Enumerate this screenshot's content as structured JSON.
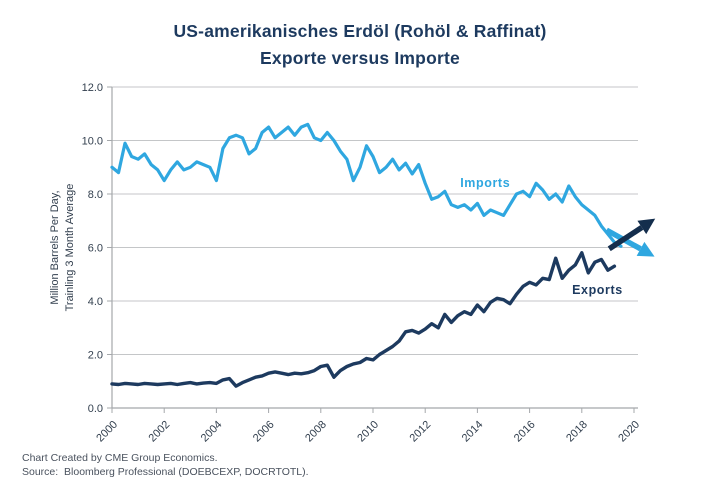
{
  "title": {
    "line1": "US-amerikanisches Erdöl (Rohöl & Raffinat)",
    "line2": "Exporte versus Importe"
  },
  "footer": {
    "line1": "Chart Created by CME Group Economics.",
    "line2": "Source:  Bloomberg Professional (DOEBCEXP, DOCRTOTL)."
  },
  "colors": {
    "navy": "#1d3a5f",
    "arrow_navy": "#142e4d",
    "blue": "#2fa7e0",
    "grid": "#c4c6c8",
    "axis": "#a5a8ab",
    "tick_text": "#323f4e",
    "footer_text": "#4a525e"
  },
  "chart_data": {
    "type": "line",
    "title": "US-amerikanisches Erdöl (Rohöl & Raffinat) — Exporte versus Importe",
    "xlabel": "",
    "ylabel_lines": [
      "Million Barrels Per Day,",
      "Trainling 3 Month Average"
    ],
    "xlim": [
      2000,
      2020
    ],
    "ylim": [
      0,
      12
    ],
    "x_ticks": [
      2000,
      2002,
      2004,
      2006,
      2008,
      2010,
      2012,
      2014,
      2016,
      2018,
      2020
    ],
    "y_ticks": [
      0,
      2,
      4,
      6,
      8,
      10,
      12
    ],
    "y_tick_labels": [
      "0.0",
      "2.0",
      "4.0",
      "6.0",
      "8.0",
      "10.0",
      "12.0"
    ],
    "grid": "horizontal",
    "legend": "inline-labels",
    "x_start": 2000,
    "x_step": 0.25,
    "series": [
      {
        "name": "Imports",
        "color": "#2fa7e0",
        "stroke_width": 3.2,
        "label": {
          "x": 2014.3,
          "y": 8.42
        },
        "values": [
          9.0,
          8.8,
          9.9,
          9.4,
          9.3,
          9.5,
          9.1,
          8.9,
          8.5,
          8.9,
          9.2,
          8.9,
          9.0,
          9.2,
          9.1,
          9.0,
          8.5,
          9.7,
          10.1,
          10.2,
          10.1,
          9.5,
          9.7,
          10.3,
          10.5,
          10.1,
          10.3,
          10.5,
          10.2,
          10.5,
          10.6,
          10.1,
          10.0,
          10.3,
          10.0,
          9.6,
          9.3,
          8.5,
          9.0,
          9.8,
          9.4,
          8.8,
          9.0,
          9.3,
          8.9,
          9.15,
          8.75,
          9.1,
          8.4,
          7.8,
          7.9,
          8.1,
          7.6,
          7.5,
          7.6,
          7.4,
          7.65,
          7.2,
          7.4,
          7.3,
          7.2,
          7.6,
          8.0,
          8.1,
          7.9,
          8.4,
          8.15,
          7.8,
          8.0,
          7.7,
          8.3,
          7.9,
          7.6,
          7.4,
          7.2,
          6.8,
          6.5,
          6.2,
          6.05
        ]
      },
      {
        "name": "Exports",
        "color": "#1d3a5f",
        "stroke_width": 3.4,
        "label": {
          "x": 2018.6,
          "y": 4.42
        },
        "values": [
          0.9,
          0.88,
          0.92,
          0.9,
          0.88,
          0.92,
          0.9,
          0.88,
          0.9,
          0.92,
          0.88,
          0.92,
          0.95,
          0.9,
          0.93,
          0.95,
          0.92,
          1.05,
          1.1,
          0.82,
          0.95,
          1.05,
          1.15,
          1.2,
          1.3,
          1.35,
          1.3,
          1.25,
          1.3,
          1.28,
          1.32,
          1.4,
          1.55,
          1.6,
          1.15,
          1.4,
          1.55,
          1.65,
          1.7,
          1.85,
          1.8,
          2.0,
          2.15,
          2.3,
          2.5,
          2.85,
          2.9,
          2.8,
          2.95,
          3.15,
          3.0,
          3.5,
          3.2,
          3.45,
          3.6,
          3.5,
          3.85,
          3.6,
          3.95,
          4.1,
          4.05,
          3.9,
          4.25,
          4.55,
          4.7,
          4.6,
          4.85,
          4.8,
          5.6,
          4.85,
          5.15,
          5.35,
          5.8,
          5.05,
          5.45,
          5.55,
          5.15,
          5.3
        ]
      }
    ],
    "trend_arrows": [
      {
        "name": "imports-trend-arrow",
        "color": "#2fa7e0",
        "x1": 2018.95,
        "y1": 6.65,
        "x2": 2020.25,
        "y2": 5.95
      },
      {
        "name": "exports-trend-arrow",
        "color": "#142e4d",
        "x1": 2019.05,
        "y1": 5.95,
        "x2": 2020.3,
        "y2": 6.75
      }
    ]
  }
}
